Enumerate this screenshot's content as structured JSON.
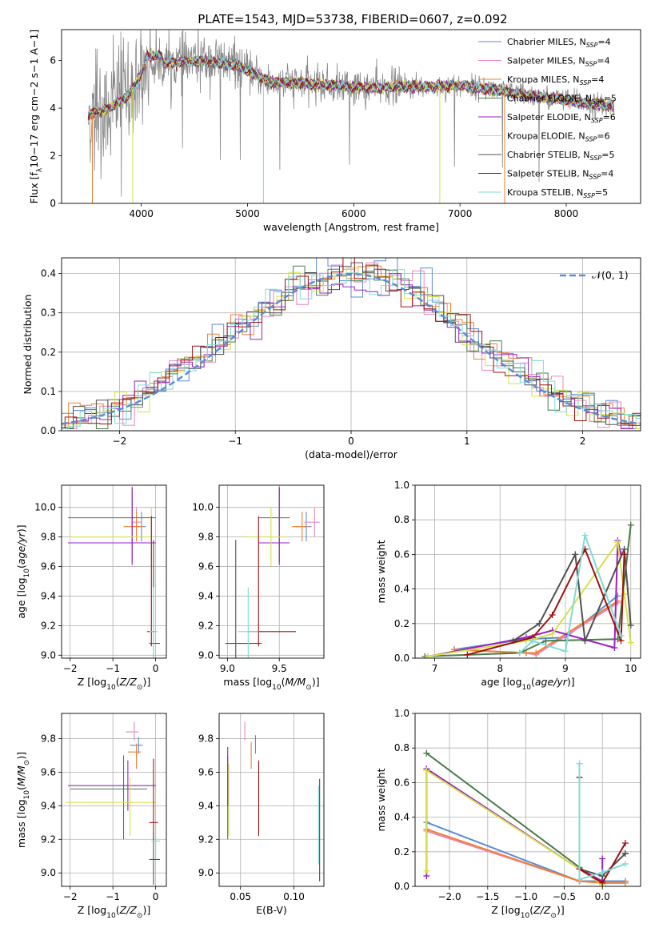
{
  "figure_title": "PLATE=1543, MJD=53738, FIBERID=0607, z=0.092",
  "colors": {
    "Chabrier MILES": "#5b8bd6",
    "Salpeter MILES": "#e887c2",
    "Kroupa MILES": "#f08030",
    "Chabrier ELODIE": "#4a7c4a",
    "Salpeter ELODIE": "#9a20c0",
    "Kroupa ELODIE": "#d6e04a",
    "Chabrier STELIB": "#505050",
    "Salpeter STELIB": "#a01010",
    "Kroupa STELIB": "#7fdada",
    "data": "#888888",
    "normal": "#5b8bd6"
  },
  "chart_data": [
    {
      "type": "line",
      "name": "spectrum",
      "xlabel": "wavelength [Angstrom, rest frame]",
      "ylabel": "Flux [f$_\\lambda$10$^{-17}$ erg cm$^{-2}$ s$^{-1}$ A$^{-1}$]",
      "ylabel_text": "Flux [f",
      "xlim": [
        3250,
        8700
      ],
      "ylim": [
        0,
        7.3
      ],
      "xticks": [
        "4000",
        "5000",
        "6000",
        "7000",
        "8000"
      ],
      "yticks": [
        "0",
        "2",
        "4",
        "6"
      ],
      "legend_position": "top-right",
      "legend": [
        {
          "model": "Chabrier MILES",
          "nssp": "4"
        },
        {
          "model": "Salpeter MILES",
          "nssp": "4"
        },
        {
          "model": "Kroupa MILES",
          "nssp": "4"
        },
        {
          "model": "Chabrier ELODIE",
          "nssp": "5"
        },
        {
          "model": "Salpeter ELODIE",
          "nssp": "6"
        },
        {
          "model": "Kroupa ELODIE",
          "nssp": "6"
        },
        {
          "model": "Chabrier STELIB",
          "nssp": "5"
        },
        {
          "model": "Salpeter STELIB",
          "nssp": "4"
        },
        {
          "model": "Kroupa STELIB",
          "nssp": "5"
        }
      ],
      "continuum": {
        "x": [
          3500,
          3700,
          3900,
          4050,
          4300,
          4600,
          4900,
          5200,
          5500,
          5800,
          6100,
          6400,
          6700,
          7000,
          7300,
          7600,
          7900,
          8200,
          8400
        ],
        "y": [
          3.7,
          4.0,
          4.6,
          5.9,
          5.9,
          6.0,
          5.8,
          5.1,
          5.05,
          4.95,
          4.85,
          4.9,
          4.9,
          4.95,
          4.8,
          4.55,
          4.4,
          4.2,
          4.1
        ]
      }
    },
    {
      "type": "line",
      "name": "residuals",
      "xlabel": "(data-model)/error",
      "ylabel": "Normed distribution",
      "xlim": [
        -2.5,
        2.5
      ],
      "ylim": [
        0,
        0.44
      ],
      "xticks": [
        "−2",
        "−1",
        "0",
        "1",
        "2"
      ],
      "yticks": [
        "0.0",
        "0.1",
        "0.2",
        "0.3",
        "0.4"
      ],
      "legend_position": "top-right",
      "legend_label": "𝒩(0, 1)",
      "grid": true
    },
    {
      "type": "scatter",
      "name": "age-vs-Z",
      "xlabel": "Z [log10(Z/Z⊙)]",
      "ylabel": "age  [log10(age/yr)]",
      "xlim": [
        -2.2,
        0.25
      ],
      "ylim": [
        8.98,
        10.15
      ],
      "xticks": [
        "−2",
        "−1",
        "0"
      ],
      "yticks": [
        "9.0",
        "9.2",
        "9.4",
        "9.6",
        "9.8",
        "10.0"
      ],
      "points": [
        {
          "model": "Chabrier MILES",
          "x": -0.33,
          "xerr": [
            0.2,
            0.1
          ],
          "y": 9.87,
          "yerr": [
            0.1,
            0.1
          ]
        },
        {
          "model": "Salpeter MILES",
          "x": -0.45,
          "xerr": [
            0.1,
            0.1
          ],
          "y": 9.9,
          "yerr": [
            0.1,
            0.1
          ]
        },
        {
          "model": "Kroupa MILES",
          "x": -0.45,
          "xerr": [
            0.3,
            0.15
          ],
          "y": 9.87,
          "yerr": [
            0.1,
            0.1
          ]
        },
        {
          "model": "Chabrier ELODIE",
          "x": -0.55,
          "xerr": [
            1.5,
            0.55
          ],
          "y": 9.93,
          "yerr": [
            0.3,
            0.2
          ]
        },
        {
          "model": "Salpeter ELODIE",
          "x": -0.55,
          "xerr": [
            1.5,
            0.55
          ],
          "y": 9.76,
          "yerr": [
            0.15,
            0.38
          ]
        },
        {
          "model": "Kroupa ELODIE",
          "x": -0.1,
          "xerr": [
            1.9,
            0.05
          ],
          "y": 9.8,
          "yerr": [
            0.2,
            0.2
          ]
        },
        {
          "model": "Chabrier STELIB",
          "x": -0.05,
          "xerr": [
            0.1,
            0.15
          ],
          "y": 9.08,
          "yerr": [
            0.6,
            0.7
          ]
        },
        {
          "model": "Salpeter STELIB",
          "x": -0.1,
          "xerr": [
            0.1,
            0.1
          ],
          "y": 9.16,
          "yerr": [
            0.1,
            0.78
          ]
        },
        {
          "model": "Kroupa STELIB",
          "x": -0.05,
          "xerr": [
            0.1,
            0.1
          ],
          "y": 9.16,
          "yerr": [
            0.2,
            0.3
          ]
        }
      ]
    },
    {
      "type": "scatter",
      "name": "age-vs-mass",
      "xlabel": "mass [log10(M/M⊙)]",
      "ylabel": "",
      "xlim": [
        8.92,
        9.93
      ],
      "ylim": [
        8.98,
        10.15
      ],
      "xticks": [
        "9.0",
        "9.5"
      ],
      "yticks": [
        "9.0",
        "9.2",
        "9.4",
        "9.6",
        "9.8",
        "10.0"
      ],
      "points": [
        {
          "model": "Chabrier MILES",
          "x": 9.76,
          "xerr": [
            0.1,
            0.05
          ],
          "y": 9.87,
          "yerr": [
            0.1,
            0.1
          ]
        },
        {
          "model": "Salpeter MILES",
          "x": 9.84,
          "xerr": [
            0.1,
            0.05
          ],
          "y": 9.9,
          "yerr": [
            0.1,
            0.1
          ]
        },
        {
          "model": "Kroupa MILES",
          "x": 9.72,
          "xerr": [
            0.1,
            0.05
          ],
          "y": 9.87,
          "yerr": [
            0.1,
            0.1
          ]
        },
        {
          "model": "Chabrier ELODIE",
          "x": 9.5,
          "xerr": [
            0.2,
            0.1
          ],
          "y": 9.93,
          "yerr": [
            0.3,
            0.2
          ]
        },
        {
          "model": "Salpeter ELODIE",
          "x": 9.5,
          "xerr": [
            0.2,
            0.1
          ],
          "y": 9.76,
          "yerr": [
            0.15,
            0.38
          ]
        },
        {
          "model": "Kroupa ELODIE",
          "x": 9.42,
          "xerr": [
            0.25,
            0.15
          ],
          "y": 9.8,
          "yerr": [
            0.2,
            0.2
          ]
        },
        {
          "model": "Chabrier STELIB",
          "x": 9.08,
          "xerr": [
            0.1,
            0.25
          ],
          "y": 9.08,
          "yerr": [
            0.6,
            0.7
          ]
        },
        {
          "model": "Salpeter STELIB",
          "x": 9.3,
          "xerr": [
            0.1,
            0.36
          ],
          "y": 9.16,
          "yerr": [
            0.1,
            0.78
          ]
        },
        {
          "model": "Kroupa STELIB",
          "x": 9.2,
          "xerr": [
            0.1,
            0.1
          ],
          "y": 9.16,
          "yerr": [
            0.2,
            0.3
          ]
        }
      ]
    },
    {
      "type": "line",
      "name": "mass-weight-vs-age",
      "xlabel": "age  [log10(age/yr)]",
      "ylabel": "mass weight",
      "xlim": [
        6.7,
        10.15
      ],
      "ylim": [
        0,
        1.0
      ],
      "xticks": [
        "7",
        "8",
        "9",
        "10"
      ],
      "yticks": [
        "0.0",
        "0.2",
        "0.4",
        "0.6",
        "0.8",
        "1.0"
      ],
      "series": [
        {
          "model": "Chabrier MILES",
          "x": [
            7.3,
            8.4,
            9.0,
            9.8
          ],
          "y": [
            0.05,
            0.11,
            0.12,
            0.36
          ]
        },
        {
          "model": "Salpeter MILES",
          "x": [
            7.3,
            8.4,
            8.55,
            9.8
          ],
          "y": [
            0.05,
            0.03,
            0.02,
            0.32
          ]
        },
        {
          "model": "Kroupa MILES",
          "x": [
            7.3,
            8.4,
            8.55,
            9.8
          ],
          "y": [
            0.05,
            0.03,
            0.03,
            0.33
          ]
        },
        {
          "model": "Chabrier ELODIE",
          "x": [
            6.85,
            8.3,
            8.7,
            9.8,
            10.0
          ],
          "y": [
            0.01,
            0.03,
            0.1,
            0.11,
            0.77
          ]
        },
        {
          "model": "Salpeter ELODIE",
          "x": [
            6.9,
            8.4,
            8.8,
            9.75,
            9.8,
            9.85
          ],
          "y": [
            0.01,
            0.12,
            0.16,
            0.06,
            0.68,
            0.6
          ]
        },
        {
          "model": "Kroupa ELODIE",
          "x": [
            6.9,
            8.4,
            8.8,
            9.8,
            9.9,
            10.0
          ],
          "y": [
            0.01,
            0.1,
            0.14,
            0.67,
            0.37,
            0.09
          ]
        },
        {
          "model": "Chabrier STELIB",
          "x": [
            8.2,
            8.6,
            9.15,
            9.3,
            9.9,
            10.0
          ],
          "y": [
            0.1,
            0.2,
            0.6,
            0.1,
            0.63,
            0.19
          ]
        },
        {
          "model": "Salpeter STELIB",
          "x": [
            7.5,
            8.5,
            8.8,
            9.3,
            9.85,
            9.9
          ],
          "y": [
            0.02,
            0.12,
            0.25,
            0.63,
            0.1,
            0.6
          ]
        },
        {
          "model": "Kroupa STELIB",
          "x": [
            8.3,
            8.5,
            9.0,
            9.3,
            9.85
          ],
          "y": [
            0.03,
            0.1,
            0.04,
            0.71,
            0.13
          ]
        }
      ]
    },
    {
      "type": "scatter",
      "name": "mass-vs-Z",
      "xlabel": "Z [log10(Z/Z⊙)]",
      "ylabel": "mass [log10(M/M⊙)]",
      "xlim": [
        -2.2,
        0.25
      ],
      "ylim": [
        8.92,
        9.95
      ],
      "xticks": [
        "−2",
        "−1",
        "0"
      ],
      "yticks": [
        "9.0",
        "9.2",
        "9.4",
        "9.6",
        "9.8"
      ],
      "points": [
        {
          "model": "Chabrier MILES",
          "x": -0.4,
          "xerr": [
            0.2,
            0.1
          ],
          "y": 9.76,
          "yerr": [
            0.05,
            0.05
          ]
        },
        {
          "model": "Salpeter MILES",
          "x": -0.5,
          "xerr": [
            0.2,
            0.1
          ],
          "y": 9.84,
          "yerr": [
            0.05,
            0.06
          ]
        },
        {
          "model": "Kroupa MILES",
          "x": -0.45,
          "xerr": [
            0.2,
            0.1
          ],
          "y": 9.72,
          "yerr": [
            0.1,
            0.05
          ]
        },
        {
          "model": "Chabrier ELODIE",
          "x": -0.75,
          "xerr": [
            1.25,
            0.55
          ],
          "y": 9.5,
          "yerr": [
            0.3,
            0.2
          ]
        },
        {
          "model": "Salpeter ELODIE",
          "x": -0.65,
          "xerr": [
            1.4,
            0.65
          ],
          "y": 9.52,
          "yerr": [
            0.15,
            0.15
          ]
        },
        {
          "model": "Kroupa ELODIE",
          "x": -0.6,
          "xerr": [
            1.5,
            0.6
          ],
          "y": 9.42,
          "yerr": [
            0.2,
            0.15
          ]
        },
        {
          "model": "Chabrier STELIB",
          "x": -0.05,
          "xerr": [
            0.1,
            0.15
          ],
          "y": 9.08,
          "yerr": [
            0.15,
            0.16
          ]
        },
        {
          "model": "Salpeter STELIB",
          "x": -0.05,
          "xerr": [
            0.1,
            0.1
          ],
          "y": 9.3,
          "yerr": [
            0.1,
            0.38
          ]
        },
        {
          "model": "Kroupa STELIB",
          "x": 0.0,
          "xerr": [
            0.1,
            0.1
          ],
          "y": 9.19,
          "yerr": [
            0.1,
            0.1
          ]
        }
      ]
    },
    {
      "type": "scatter",
      "name": "mass-vs-EBV",
      "xlabel": "E(B-V)",
      "ylabel": "",
      "xlim": [
        0.03,
        0.128
      ],
      "ylim": [
        8.92,
        9.95
      ],
      "xticks": [
        "0.05",
        "0.10"
      ],
      "yticks": [
        "9.0",
        "9.2",
        "9.4",
        "9.6",
        "9.8"
      ],
      "points": [
        {
          "model": "Chabrier MILES",
          "x": 0.064,
          "y": 9.76,
          "yerr": [
            0.05,
            0.06
          ]
        },
        {
          "model": "Salpeter MILES",
          "x": 0.054,
          "y": 9.84,
          "yerr": [
            0.05,
            0.06
          ]
        },
        {
          "model": "Kroupa MILES",
          "x": 0.06,
          "y": 9.72,
          "yerr": [
            0.1,
            0.06
          ]
        },
        {
          "model": "Chabrier ELODIE",
          "x": 0.038,
          "y": 9.5,
          "yerr": [
            0.3,
            0.2
          ]
        },
        {
          "model": "Salpeter ELODIE",
          "x": 0.038,
          "y": 9.6,
          "yerr": [
            0.2,
            0.15
          ]
        },
        {
          "model": "Kroupa ELODIE",
          "x": 0.039,
          "y": 9.42,
          "yerr": [
            0.2,
            0.23
          ]
        },
        {
          "model": "Chabrier STELIB",
          "x": 0.124,
          "y": 9.2,
          "yerr": [
            0.25,
            0.36
          ]
        },
        {
          "model": "Salpeter STELIB",
          "x": 0.067,
          "y": 9.45,
          "yerr": [
            0.23,
            0.22
          ]
        },
        {
          "model": "Kroupa STELIB",
          "x": 0.123,
          "y": 9.3,
          "yerr": [
            0.25,
            0.22
          ]
        }
      ]
    },
    {
      "type": "line",
      "name": "mass-weight-vs-Z",
      "xlabel": "Z [log10(Z/Z⊙)]",
      "ylabel": "mass weight",
      "xlim": [
        -2.45,
        0.5
      ],
      "ylim": [
        0,
        1.0
      ],
      "xticks": [
        "−2.0",
        "−1.5",
        "−1.0",
        "−0.5",
        "0.0"
      ],
      "yticks": [
        "0.0",
        "0.2",
        "0.4",
        "0.6",
        "0.8",
        "1.0"
      ],
      "series": [
        {
          "model": "Chabrier MILES",
          "x": [
            -2.3,
            -0.3,
            0.0,
            0.3
          ],
          "y": [
            0.37,
            0.03,
            0.03,
            0.03
          ]
        },
        {
          "model": "Salpeter MILES",
          "x": [
            -2.3,
            -0.3,
            0.0,
            0.3
          ],
          "y": [
            0.32,
            0.03,
            0.02,
            0.02
          ]
        },
        {
          "model": "Kroupa MILES",
          "x": [
            -2.3,
            -0.3,
            0.0,
            0.3
          ],
          "y": [
            0.33,
            0.03,
            0.02,
            0.02
          ]
        },
        {
          "model": "Chabrier ELODIE",
          "x": [
            -2.3,
            -0.3,
            0.0
          ],
          "y": [
            0.77,
            0.11,
            0.01
          ]
        },
        {
          "model": "Salpeter ELODIE",
          "x": [
            -2.3,
            -2.3,
            -0.3,
            0.0,
            0.0
          ],
          "y": [
            0.06,
            0.68,
            0.1,
            0.03,
            0.16
          ]
        },
        {
          "model": "Kroupa ELODIE",
          "x": [
            -2.3,
            -2.3,
            -0.3,
            0.0
          ],
          "y": [
            0.09,
            0.67,
            0.1,
            0.01
          ]
        },
        {
          "model": "Chabrier STELIB",
          "x": [
            -0.3,
            0.0,
            0.3,
            0.3
          ],
          "y": [
            0.1,
            0.06,
            0.19,
            0.19
          ]
        },
        {
          "model": "Salpeter STELIB",
          "x": [
            -0.3,
            -0.3,
            0.0,
            0.3
          ],
          "y": [
            0.63,
            0.1,
            0.02,
            0.25
          ]
        },
        {
          "model": "Kroupa STELIB",
          "x": [
            -0.3,
            -0.3,
            0.0,
            0.3
          ],
          "y": [
            0.71,
            0.04,
            0.08,
            0.13
          ]
        }
      ]
    }
  ]
}
